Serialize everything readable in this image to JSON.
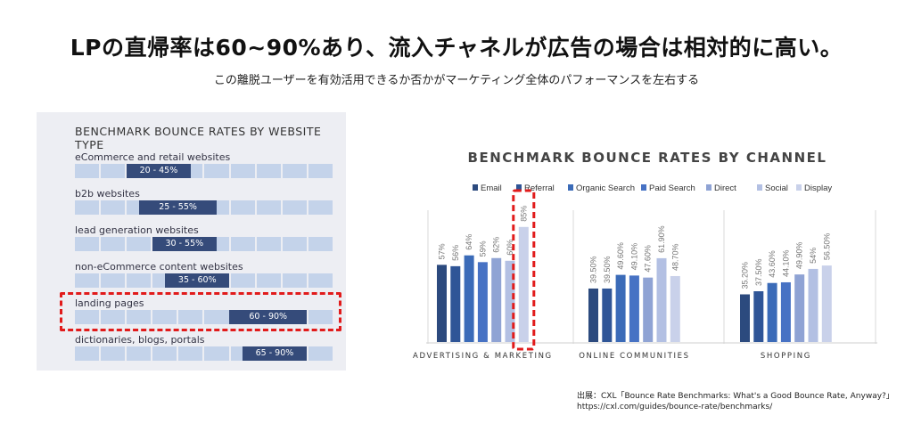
{
  "header": {
    "title": "LPの直帰率は60~90%あり、流入チャネルが広告の場合は相対的に高い。",
    "subtitle": "この離脱ユーザーを有効活用できるか否かがマーケティング全体のパフォーマンスを左右する"
  },
  "source": {
    "line1": "出展：CXL「Bounce Rate Benchmarks: What's a Good Bounce Rate, Anyway?」",
    "line2": "https://cxl.com/guides/bounce-rate/benchmarks/"
  },
  "colors": {
    "Email": "#2c4a7e",
    "Referral": "#2f5597",
    "Organic Search": "#3b6bb8",
    "Paid Search": "#4772c4",
    "Direct": "#8fa3d4",
    "Social": "#b3c0e3",
    "Display": "#c9d1ea",
    "highlight": "#e11b1b"
  },
  "chart_data": [
    {
      "type": "bar",
      "title": "BENCHMARK BOUNCE RATES BY WEBSITE TYPE",
      "orientation": "horizontal-range",
      "scale_max": 100,
      "categories": [
        "eCommerce and retail websites",
        "b2b websites",
        "lead generation websites",
        "non-eCommerce content websites",
        "landing pages",
        "dictionaries, blogs, portals"
      ],
      "ranges": [
        [
          20,
          45
        ],
        [
          25,
          55
        ],
        [
          30,
          55
        ],
        [
          35,
          60
        ],
        [
          60,
          90
        ],
        [
          65,
          90
        ]
      ],
      "labels": [
        "20 - 45%",
        "25 - 55%",
        "30 - 55%",
        "35 - 60%",
        "60 - 90%",
        "65 - 90%"
      ],
      "highlighted": "landing pages"
    },
    {
      "type": "bar",
      "title": "BENCHMARK BOUNCE RATES BY CHANNEL",
      "categories": [
        "ADVERTISING & MARKETING",
        "ONLINE COMMUNITIES",
        "SHOPPING"
      ],
      "ylim": [
        0,
        100
      ],
      "legend_position": "top",
      "series": [
        {
          "name": "Email",
          "values": [
            57,
            39.5,
            35.2
          ],
          "labels": [
            "57%",
            "39.50%",
            "35.20%"
          ]
        },
        {
          "name": "Referral",
          "values": [
            56,
            39.5,
            37.5
          ],
          "labels": [
            "56%",
            "39.50%",
            "37.50%"
          ]
        },
        {
          "name": "Organic Search",
          "values": [
            64,
            49.6,
            43.6
          ],
          "labels": [
            "64%",
            "49.60%",
            "43.60%"
          ]
        },
        {
          "name": "Paid Search",
          "values": [
            59,
            49.1,
            44.1
          ],
          "labels": [
            "59%",
            "49.10%",
            "44.10%"
          ]
        },
        {
          "name": "Direct",
          "values": [
            62,
            47.6,
            49.9
          ],
          "labels": [
            "62%",
            "47.60%",
            "49.90%"
          ]
        },
        {
          "name": "Social",
          "values": [
            60,
            61.9,
            54
          ],
          "labels": [
            "60%",
            "61.90%",
            "54%"
          ]
        },
        {
          "name": "Display",
          "values": [
            85,
            48.7,
            56.5
          ],
          "labels": [
            "85%",
            "48.70%",
            "56.50%"
          ]
        }
      ],
      "highlighted": "Display - ADVERTISING & MARKETING"
    }
  ]
}
